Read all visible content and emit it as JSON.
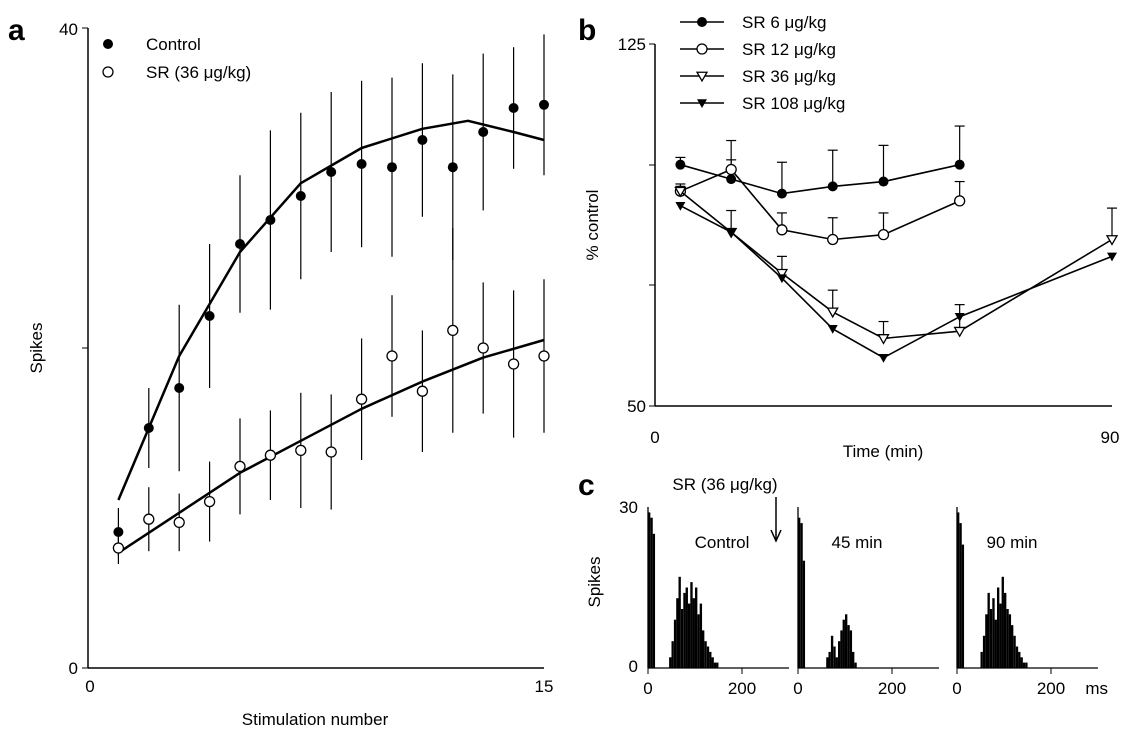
{
  "chart_data": [
    {
      "panel": "a",
      "type": "scatter",
      "xlabel": "Stimulation number",
      "ylabel": "Spikes",
      "xlim": [
        0,
        15
      ],
      "ylim": [
        0,
        40
      ],
      "x_tick_labels": [
        "0",
        "15"
      ],
      "y_tick_labels": [
        "0",
        "40"
      ],
      "legend_position": "top-left",
      "series": [
        {
          "name": "Control",
          "marker": "filled-circle",
          "x": [
            1,
            2,
            3,
            4,
            5,
            6,
            7,
            8,
            9,
            10,
            11,
            12,
            13,
            14,
            15
          ],
          "y": [
            8.5,
            15,
            17.5,
            22,
            26.5,
            28,
            29.5,
            31,
            31.5,
            31.3,
            33,
            31.3,
            33.5,
            35,
            35.2
          ],
          "err": [
            1.5,
            2.5,
            5.2,
            4.5,
            4.3,
            5.6,
            5.2,
            5.0,
            5.2,
            5.6,
            4.8,
            5.8,
            4.9,
            3.8,
            4.4
          ],
          "fit": [
            [
              1,
              10.5
            ],
            [
              3,
              19.5
            ],
            [
              5,
              26
            ],
            [
              7,
              30.3
            ],
            [
              9,
              32.5
            ],
            [
              11,
              33.7
            ],
            [
              12.5,
              34.2
            ],
            [
              14,
              33.5
            ],
            [
              15,
              33
            ]
          ]
        },
        {
          "name": "SR (36 μg/kg)",
          "marker": "open-circle",
          "x": [
            1,
            2,
            3,
            4,
            5,
            6,
            7,
            8,
            9,
            10,
            11,
            12,
            13,
            14,
            15
          ],
          "y": [
            7.5,
            9.3,
            9.1,
            10.4,
            12.6,
            13.3,
            13.6,
            13.5,
            16.8,
            19.5,
            17.3,
            21.1,
            20.0,
            19.0,
            19.5
          ],
          "err": [
            1.0,
            2.0,
            1.8,
            2.5,
            3.0,
            2.8,
            3.6,
            3.6,
            3.8,
            3.8,
            3.8,
            6.4,
            4.1,
            4.6,
            4.8
          ],
          "fit": [
            [
              1,
              7.2
            ],
            [
              3,
              9.7
            ],
            [
              5,
              12.2
            ],
            [
              7,
              14.2
            ],
            [
              9,
              16.2
            ],
            [
              11,
              17.9
            ],
            [
              13,
              19.4
            ],
            [
              15,
              20.5
            ]
          ]
        }
      ]
    },
    {
      "panel": "b",
      "type": "line",
      "xlabel": "Time (min)",
      "ylabel": "% control",
      "xlim": [
        0,
        90
      ],
      "ylim": [
        50,
        125
      ],
      "x_tick_labels": [
        "0",
        "90"
      ],
      "y_tick_labels": [
        "50",
        "125"
      ],
      "legend_position": "top",
      "series": [
        {
          "name": "SR 6 μg/kg",
          "marker": "filled-circle",
          "x": [
            5,
            15,
            25,
            35,
            45,
            60
          ],
          "y": [
            100.0,
            97.0,
            94.0,
            95.5,
            96.5,
            100.0
          ],
          "err": [
            1.5,
            4.0,
            6.5,
            7.5,
            7.5,
            8.0
          ]
        },
        {
          "name": "SR 12 μg/kg",
          "marker": "open-circle",
          "x": [
            5,
            15,
            25,
            35,
            45,
            60
          ],
          "y": [
            94.5,
            99.0,
            86.5,
            84.5,
            85.5,
            92.5
          ],
          "err": [
            1.5,
            6.0,
            3.5,
            4.5,
            4.5,
            4.0
          ]
        },
        {
          "name": "SR 36 μg/kg",
          "marker": "open-triangle-down",
          "x": [
            5,
            15,
            25,
            35,
            45,
            60,
            90
          ],
          "y": [
            94.5,
            86.0,
            77.5,
            69.5,
            64.0,
            65.5,
            84.5
          ],
          "err": [
            1.0,
            4.5,
            3.5,
            4.5,
            3.5,
            5.5,
            6.5
          ]
        },
        {
          "name": "SR 108 μg/kg",
          "marker": "filled-triangle-down",
          "x": [
            5,
            15,
            25,
            35,
            45,
            60,
            90
          ],
          "y": [
            91.5,
            86.0,
            76.5,
            66.0,
            60.0,
            68.5,
            81.0
          ],
          "err": [
            0,
            0,
            0,
            0,
            0,
            0,
            0
          ]
        }
      ]
    },
    {
      "panel": "c",
      "type": "bar",
      "ylabel": "Spikes",
      "ylim": [
        0,
        30
      ],
      "y_tick_labels": [
        "0",
        "30"
      ],
      "x_tick_labels": [
        "0",
        "200"
      ],
      "x_unit": "ms",
      "annotation": "SR (36 μg/kg)",
      "histograms": [
        {
          "label": "Control",
          "bins_ms": [
            0,
            5,
            10,
            15,
            20,
            25,
            30,
            35,
            40,
            45,
            50,
            55,
            60,
            65,
            70,
            75,
            80,
            85,
            90,
            95,
            100,
            105,
            110,
            115,
            120,
            125,
            130,
            135,
            140,
            145,
            150
          ],
          "counts": [
            29,
            28,
            25,
            0,
            0,
            0,
            0,
            0,
            0,
            2,
            5,
            9,
            13,
            17,
            11,
            14,
            15,
            12,
            16,
            13,
            15,
            10,
            12,
            7,
            5,
            4,
            3,
            2,
            1,
            1,
            0
          ]
        },
        {
          "label": "45 min",
          "bins_ms": [
            0,
            5,
            10,
            15,
            20,
            25,
            30,
            35,
            40,
            45,
            50,
            55,
            60,
            65,
            70,
            75,
            80,
            85,
            90,
            95,
            100,
            105,
            110,
            115,
            120,
            125,
            130,
            135,
            140,
            145,
            150
          ],
          "counts": [
            28,
            27,
            20,
            0,
            0,
            0,
            0,
            0,
            0,
            0,
            0,
            0,
            2,
            3,
            6,
            4,
            2,
            5,
            7,
            9,
            10,
            8,
            7,
            3,
            1,
            0,
            0,
            0,
            0,
            0,
            0
          ]
        },
        {
          "label": "90 min",
          "bins_ms": [
            0,
            5,
            10,
            15,
            20,
            25,
            30,
            35,
            40,
            45,
            50,
            55,
            60,
            65,
            70,
            75,
            80,
            85,
            90,
            95,
            100,
            105,
            110,
            115,
            120,
            125,
            130,
            135,
            140,
            145,
            150
          ],
          "counts": [
            29,
            27,
            23,
            0,
            0,
            0,
            0,
            0,
            0,
            0,
            3,
            6,
            10,
            14,
            11,
            13,
            9,
            15,
            12,
            17,
            14,
            11,
            10,
            8,
            6,
            4,
            3,
            2,
            1,
            1,
            0
          ]
        }
      ]
    }
  ],
  "panel_letters": {
    "a": "a",
    "b": "b",
    "c": "c"
  }
}
